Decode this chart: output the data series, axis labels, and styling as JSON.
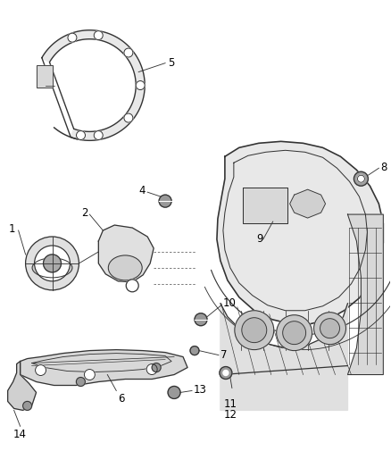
{
  "background_color": "#ffffff",
  "line_color": "#333333",
  "label_color": "#000000",
  "fig_width": 4.38,
  "fig_height": 5.33,
  "dpi": 100,
  "label_fontsize": 8.5,
  "lw": 0.9
}
